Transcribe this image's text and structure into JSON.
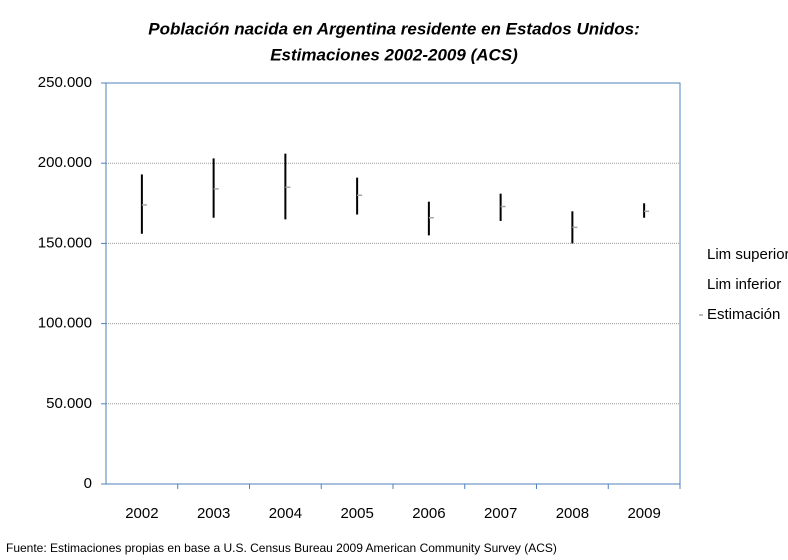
{
  "chart_data": {
    "type": "stock",
    "title": [
      "Población nacida en Argentina residente en Estados Unidos:",
      "Estimaciones 2002-2009  (ACS)"
    ],
    "categories": [
      "2002",
      "2003",
      "2004",
      "2005",
      "2006",
      "2007",
      "2008",
      "2009"
    ],
    "series": [
      {
        "name": "Lim superior",
        "color": "#000000",
        "values": [
          193000,
          203000,
          206000,
          191000,
          176000,
          181000,
          170000,
          175000
        ]
      },
      {
        "name": "Lim inferior",
        "color": "#000000",
        "values": [
          156000,
          166000,
          165000,
          168000,
          155000,
          164000,
          150000,
          166000
        ]
      },
      {
        "name": "Estimación",
        "color": "#a6a6a6",
        "values": [
          174000,
          184000,
          185000,
          180000,
          166000,
          173000,
          160000,
          170000
        ]
      }
    ],
    "ylim": [
      0,
      250000
    ],
    "yticks": [
      0,
      {
        "value": 50000,
        "label": "50.000"
      },
      {
        "value": 100000,
        "label": "100.000"
      },
      {
        "value": 150000,
        "label": "150.000"
      },
      {
        "value": 200000,
        "label": "200.000"
      },
      {
        "value": 250000,
        "label": "250.000"
      }
    ],
    "grid": true,
    "legend": "right",
    "source": "Fuente: Estimaciones propias en base a U.S. Census Bureau 2009 American Community  Survey (ACS)"
  }
}
